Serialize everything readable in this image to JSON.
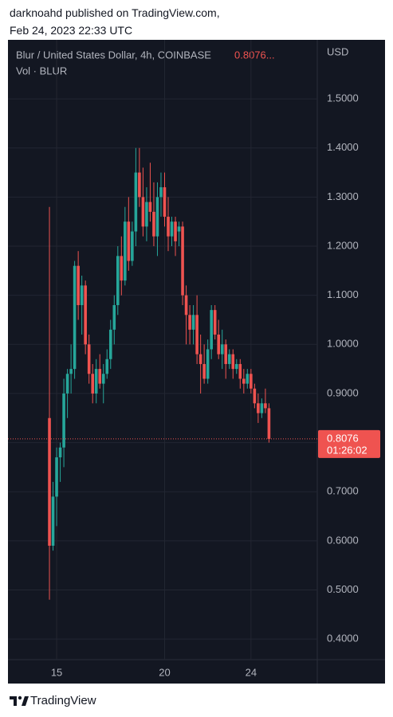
{
  "header": {
    "publisher": "darknoahd published on TradingView.com,",
    "date": "Feb 24, 2023 22:33 UTC"
  },
  "footer": {
    "brand": "TradingView"
  },
  "chart_data": {
    "type": "candlestick",
    "title": "Blur / United States Dollar, 4h, COINBASE",
    "header_price": "0.8076...",
    "subtitle": "Vol · BLUR",
    "y_axis_label": "USD",
    "last_price": {
      "value": 0.8076,
      "label": "0.8076"
    },
    "countdown": "01:26:02",
    "up_color": "#26a69a",
    "down_color": "#ef5350",
    "grid": true,
    "xlim": [
      12.82,
      27.07
    ],
    "xticks": [
      15,
      20,
      24
    ],
    "ylim": [
      0.358,
      1.617
    ],
    "yticks": [
      {
        "value": 0.4,
        "label": "0.4000"
      },
      {
        "value": 0.5,
        "label": "0.5000"
      },
      {
        "value": 0.6,
        "label": "0.6000"
      },
      {
        "value": 0.7,
        "label": "0.7000"
      },
      {
        "value": 0.8,
        "label": "0.8000"
      },
      {
        "value": 0.9,
        "label": "0.9000"
      },
      {
        "value": 1.0,
        "label": "1.0000"
      },
      {
        "value": 1.1,
        "label": "1.1000"
      },
      {
        "value": 1.2,
        "label": "1.2000"
      },
      {
        "value": 1.3,
        "label": "1.3000"
      },
      {
        "value": 1.4,
        "label": "1.4000"
      },
      {
        "value": 1.5,
        "label": "1.5000"
      }
    ],
    "x": [
      14.667,
      14.833,
      15,
      15.167,
      15.333,
      15.5,
      15.667,
      15.833,
      16,
      16.167,
      16.333,
      16.5,
      16.667,
      16.833,
      17,
      17.167,
      17.333,
      17.5,
      17.667,
      17.833,
      18,
      18.167,
      18.333,
      18.5,
      18.667,
      18.833,
      19,
      19.167,
      19.333,
      19.5,
      19.667,
      19.833,
      20,
      20.167,
      20.333,
      20.5,
      20.667,
      20.833,
      21,
      21.167,
      21.333,
      21.5,
      21.667,
      21.833,
      22,
      22.167,
      22.333,
      22.5,
      22.667,
      22.833,
      23,
      23.167,
      23.333,
      23.5,
      23.667,
      23.833,
      24,
      24.167,
      24.333,
      24.5,
      24.667,
      24.833
    ],
    "open": [
      0.85,
      0.59,
      0.69,
      0.77,
      0.79,
      0.9,
      0.94,
      0.95,
      1.16,
      1.08,
      1.12,
      1.0,
      0.94,
      0.9,
      0.95,
      0.92,
      0.94,
      0.97,
      1.03,
      1.08,
      1.18,
      1.13,
      1.25,
      1.17,
      1.23,
      1.35,
      1.3,
      1.24,
      1.29,
      1.27,
      1.22,
      1.3,
      1.32,
      1.26,
      1.22,
      1.25,
      1.23,
      1.24,
      1.1,
      1.06,
      1.03,
      1.06,
      0.98,
      0.96,
      0.93,
      0.99,
      1.07,
      1.02,
      0.98,
      1.0,
      0.96,
      0.98,
      0.95,
      0.96,
      0.93,
      0.92,
      0.94,
      0.91,
      0.88,
      0.86,
      0.88,
      0.87
    ],
    "high": [
      1.28,
      0.72,
      0.79,
      0.8,
      0.93,
      0.95,
      1.0,
      1.17,
      1.19,
      1.14,
      1.13,
      1.02,
      0.96,
      0.97,
      0.98,
      0.96,
      0.99,
      1.05,
      1.1,
      1.2,
      1.22,
      1.28,
      1.3,
      1.25,
      1.4,
      1.4,
      1.36,
      1.32,
      1.37,
      1.33,
      1.33,
      1.35,
      1.35,
      1.3,
      1.26,
      1.26,
      1.25,
      1.25,
      1.12,
      1.08,
      1.08,
      1.1,
      1.02,
      1.0,
      1.01,
      1.08,
      1.08,
      1.05,
      1.03,
      1.01,
      0.99,
      0.99,
      0.97,
      0.97,
      0.95,
      0.95,
      0.95,
      0.92,
      0.9,
      0.89,
      0.91,
      0.88
    ],
    "low": [
      0.48,
      0.58,
      0.63,
      0.72,
      0.75,
      0.85,
      0.9,
      0.93,
      1.05,
      1.02,
      0.98,
      0.92,
      0.88,
      0.88,
      0.91,
      0.88,
      0.93,
      0.95,
      1.0,
      1.06,
      1.1,
      1.12,
      1.15,
      1.16,
      1.2,
      1.28,
      1.22,
      1.21,
      1.25,
      1.2,
      1.18,
      1.26,
      1.24,
      1.19,
      1.2,
      1.18,
      1.2,
      1.08,
      1.0,
      1.0,
      1.0,
      0.96,
      0.9,
      0.92,
      0.92,
      0.97,
      1.01,
      0.97,
      0.95,
      0.93,
      0.95,
      0.93,
      0.94,
      0.91,
      0.9,
      0.91,
      0.9,
      0.87,
      0.84,
      0.85,
      0.86,
      0.8
    ],
    "close": [
      0.59,
      0.69,
      0.77,
      0.79,
      0.9,
      0.94,
      0.95,
      1.16,
      1.08,
      1.12,
      1.0,
      0.94,
      0.9,
      0.95,
      0.92,
      0.94,
      0.97,
      1.03,
      1.08,
      1.18,
      1.13,
      1.25,
      1.17,
      1.23,
      1.35,
      1.3,
      1.24,
      1.29,
      1.27,
      1.22,
      1.3,
      1.32,
      1.26,
      1.22,
      1.25,
      1.21,
      1.24,
      1.1,
      1.06,
      1.03,
      1.06,
      0.98,
      0.96,
      0.93,
      0.99,
      1.07,
      1.02,
      0.98,
      1.0,
      0.96,
      0.98,
      0.95,
      0.96,
      0.93,
      0.92,
      0.94,
      0.91,
      0.88,
      0.86,
      0.88,
      0.87,
      0.8076
    ]
  }
}
